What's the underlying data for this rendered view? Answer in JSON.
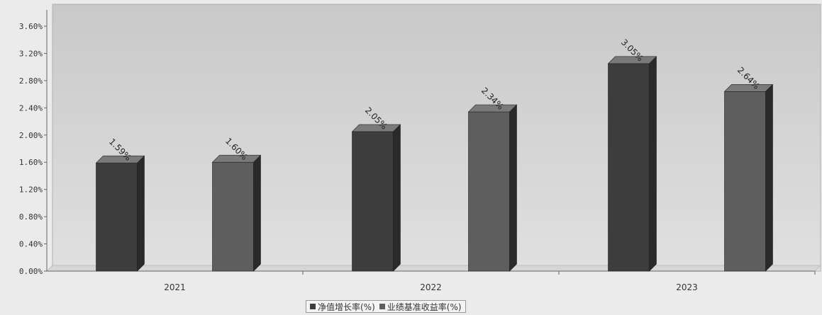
{
  "chart_data": {
    "type": "bar",
    "categories": [
      "2021",
      "2022",
      "2023"
    ],
    "series": [
      {
        "name": "净值增长率(%)",
        "values": [
          1.59,
          2.05,
          3.05
        ],
        "labels": [
          "1.59%",
          "2.05%",
          "3.05%"
        ],
        "color": "#3d3d3d"
      },
      {
        "name": "业绩基准收益率(%)",
        "values": [
          1.6,
          2.34,
          2.64
        ],
        "labels": [
          "1.60%",
          "2.34%",
          "2.64%"
        ],
        "color": "#5e5e5e"
      }
    ],
    "yticks": [
      "0.00%",
      "0.40%",
      "0.80%",
      "1.20%",
      "1.60%",
      "2.00%",
      "2.40%",
      "2.80%",
      "3.20%",
      "3.60%"
    ],
    "ylim": [
      0,
      3.6
    ],
    "grid": false,
    "legend_position": "bottom-center"
  }
}
